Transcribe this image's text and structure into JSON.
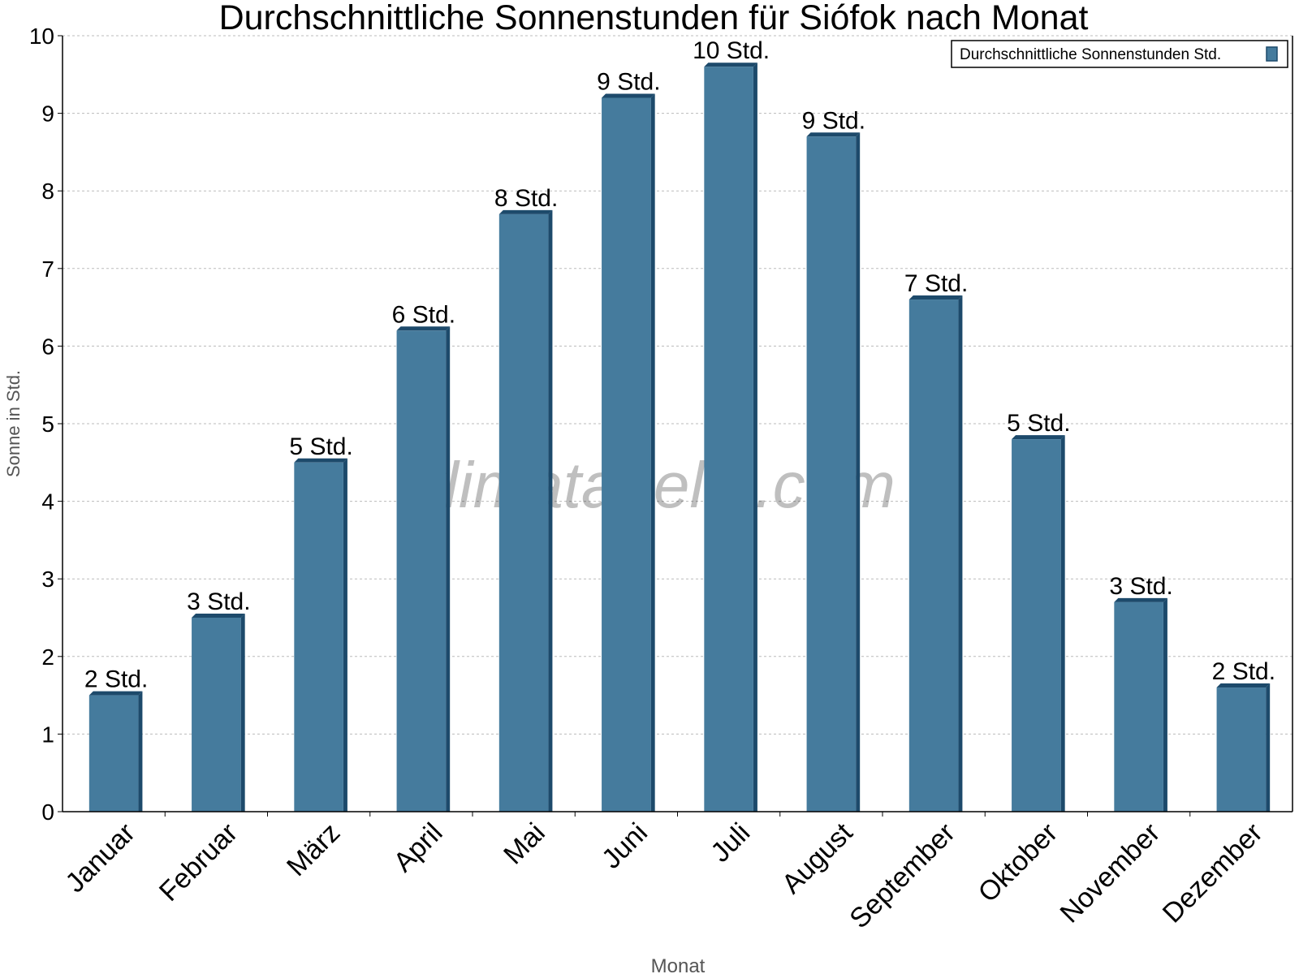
{
  "chart_data": {
    "type": "bar",
    "title": "Durchschnittliche Sonnenstunden für Siófok nach Monat",
    "xlabel": "Monat",
    "ylabel": "Sonne in Std.",
    "ylim": [
      0,
      10
    ],
    "yticks": [
      "0",
      "1",
      "2",
      "3",
      "4",
      "5",
      "6",
      "7",
      "8",
      "9",
      "10"
    ],
    "grid": true,
    "legend_placement": "top-right",
    "categories": [
      "Januar",
      "Februar",
      "März",
      "April",
      "Mai",
      "Juni",
      "Juli",
      "August",
      "September",
      "Oktober",
      "November",
      "Dezember"
    ],
    "series": [
      {
        "name": "Durchschnittliche Sonnenstunden Std.",
        "values": [
          1.5,
          2.5,
          4.5,
          6.2,
          7.7,
          9.2,
          9.6,
          8.7,
          6.6,
          4.8,
          2.7,
          1.6
        ],
        "labels": [
          "2 Std.",
          "3 Std.",
          "5 Std.",
          "6 Std.",
          "8 Std.",
          "9 Std.",
          "10 Std.",
          "9 Std.",
          "7 Std.",
          "5 Std.",
          "3 Std.",
          "2 Std."
        ],
        "color": "#457b9d",
        "edge_color": "#1d4a6b"
      }
    ],
    "watermark": "klimatabelle.com"
  }
}
